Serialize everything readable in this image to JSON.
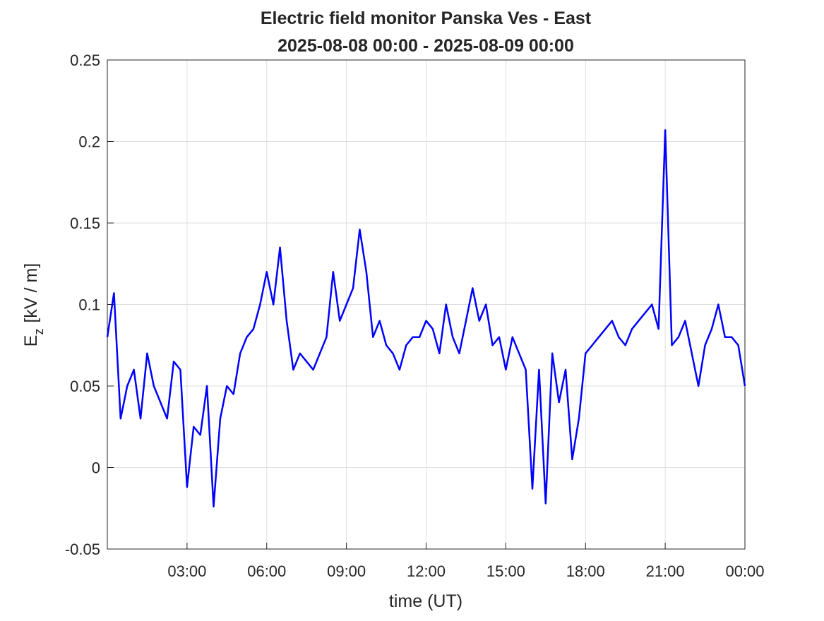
{
  "chart_data": {
    "type": "line",
    "title": "Electric field monitor Panska Ves - East",
    "subtitle": "2025-08-08 00:00 - 2025-08-09 00:00",
    "xlabel": "time (UT)",
    "ylabel": "E",
    "ylabel_sub": "z",
    "ylabel_unit": "[kV / m]",
    "x": [
      0,
      0.25,
      0.5,
      0.75,
      1,
      1.25,
      1.5,
      1.75,
      2,
      2.25,
      2.5,
      2.75,
      3,
      3.25,
      3.5,
      3.75,
      4,
      4.25,
      4.5,
      4.75,
      5,
      5.25,
      5.5,
      5.75,
      6,
      6.25,
      6.5,
      6.75,
      7,
      7.25,
      7.5,
      7.75,
      8,
      8.25,
      8.5,
      8.75,
      9,
      9.25,
      9.5,
      9.75,
      10,
      10.25,
      10.5,
      10.75,
      11,
      11.25,
      11.5,
      11.75,
      12,
      12.25,
      12.5,
      12.75,
      13,
      13.25,
      13.5,
      13.75,
      14,
      14.25,
      14.5,
      14.75,
      15,
      15.25,
      15.5,
      15.75,
      16,
      16.25,
      16.5,
      16.75,
      17,
      17.25,
      17.5,
      17.75,
      18,
      18.25,
      18.5,
      18.75,
      19,
      19.25,
      19.5,
      19.75,
      20,
      20.25,
      20.5,
      20.75,
      21,
      21.25,
      21.5,
      21.75,
      22,
      22.25,
      22.5,
      22.75,
      23,
      23.25,
      23.5,
      23.75,
      24
    ],
    "series": [
      {
        "name": "Ez",
        "color": "#0000ff",
        "values": [
          0.08,
          0.107,
          0.03,
          0.05,
          0.06,
          0.03,
          0.07,
          0.05,
          0.04,
          0.03,
          0.065,
          0.06,
          -0.012,
          0.025,
          0.02,
          0.05,
          -0.024,
          0.03,
          0.05,
          0.045,
          0.07,
          0.08,
          0.085,
          0.1,
          0.12,
          0.1,
          0.135,
          0.09,
          0.06,
          0.07,
          0.065,
          0.06,
          0.07,
          0.08,
          0.12,
          0.09,
          0.1,
          0.11,
          0.146,
          0.12,
          0.08,
          0.09,
          0.075,
          0.07,
          0.06,
          0.075,
          0.08,
          0.08,
          0.09,
          0.085,
          0.07,
          0.1,
          0.08,
          0.07,
          0.09,
          0.11,
          0.09,
          0.1,
          0.075,
          0.08,
          0.06,
          0.08,
          0.07,
          0.06,
          -0.013,
          0.06,
          -0.022,
          0.07,
          0.04,
          0.06,
          0.005,
          0.03,
          0.07,
          0.075,
          0.08,
          0.085,
          0.09,
          0.08,
          0.075,
          0.085,
          0.09,
          0.095,
          0.1,
          0.085,
          0.207,
          0.075,
          0.08,
          0.09,
          0.07,
          0.05,
          0.075,
          0.085,
          0.1,
          0.08,
          0.08,
          0.075,
          0.05
        ]
      }
    ],
    "xlim": [
      0,
      24
    ],
    "xticks": [
      {
        "value": 3,
        "label": "03:00"
      },
      {
        "value": 6,
        "label": "06:00"
      },
      {
        "value": 9,
        "label": "09:00"
      },
      {
        "value": 12,
        "label": "12:00"
      },
      {
        "value": 15,
        "label": "15:00"
      },
      {
        "value": 18,
        "label": "18:00"
      },
      {
        "value": 21,
        "label": "21:00"
      },
      {
        "value": 24,
        "label": "00:00"
      }
    ],
    "ylim": [
      -0.05,
      0.25
    ],
    "yticks": [
      -0.05,
      0,
      0.05,
      0.1,
      0.15,
      0.2,
      0.25
    ],
    "grid": true
  }
}
